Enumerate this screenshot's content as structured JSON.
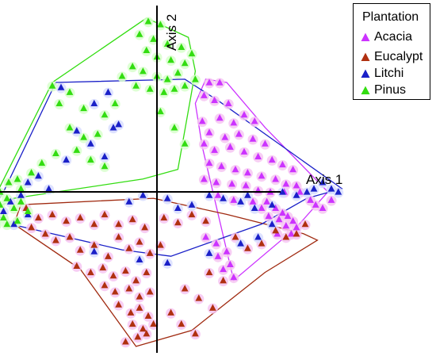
{
  "chart_data": {
    "type": "scatter",
    "title": "",
    "xlabel": "Axis 1",
    "ylabel": "Axis 2",
    "xlim": [
      -1.0,
      1.2
    ],
    "ylim": [
      -1.0,
      1.12
    ],
    "grid": false,
    "axes_through_origin": true,
    "marker": "triangle",
    "legend": {
      "title": "Plantation",
      "placement": "top-right"
    },
    "series": [
      {
        "name": "Acacia",
        "color": "#cc33ff",
        "halo": "#f6c6f2",
        "points": [
          [
            0.3,
            0.68
          ],
          [
            0.36,
            0.68
          ],
          [
            0.27,
            0.6
          ],
          [
            0.33,
            0.57
          ],
          [
            0.41,
            0.55
          ],
          [
            0.5,
            0.48
          ],
          [
            0.56,
            0.44
          ],
          [
            0.26,
            0.44
          ],
          [
            0.36,
            0.46
          ],
          [
            0.44,
            0.43
          ],
          [
            0.3,
            0.37
          ],
          [
            0.39,
            0.34
          ],
          [
            0.47,
            0.36
          ],
          [
            0.55,
            0.33
          ],
          [
            0.62,
            0.3
          ],
          [
            0.27,
            0.3
          ],
          [
            0.33,
            0.26
          ],
          [
            0.42,
            0.28
          ],
          [
            0.5,
            0.25
          ],
          [
            0.58,
            0.22
          ],
          [
            0.66,
            0.2
          ],
          [
            0.72,
            0.17
          ],
          [
            0.78,
            0.14
          ],
          [
            0.3,
            0.18
          ],
          [
            0.37,
            0.16
          ],
          [
            0.45,
            0.14
          ],
          [
            0.52,
            0.12
          ],
          [
            0.6,
            0.1
          ],
          [
            0.68,
            0.08
          ],
          [
            0.74,
            0.05
          ],
          [
            0.8,
            0.04
          ],
          [
            0.27,
            0.08
          ],
          [
            0.34,
            0.06
          ],
          [
            0.43,
            0.05
          ],
          [
            0.51,
            0.04
          ],
          [
            0.58,
            0.01
          ],
          [
            0.65,
            0.0
          ],
          [
            0.73,
            0.0
          ],
          [
            0.82,
            0.0
          ],
          [
            0.35,
            -0.02
          ],
          [
            0.44,
            -0.05
          ],
          [
            0.55,
            -0.06
          ],
          [
            0.63,
            -0.06
          ],
          [
            0.68,
            -0.1
          ],
          [
            0.72,
            -0.13
          ],
          [
            0.75,
            -0.15
          ],
          [
            0.78,
            -0.18
          ],
          [
            0.6,
            -0.1
          ],
          [
            0.64,
            -0.15
          ],
          [
            0.7,
            -0.17
          ],
          [
            0.74,
            -0.21
          ],
          [
            0.77,
            -0.26
          ],
          [
            0.8,
            -0.22
          ],
          [
            0.69,
            -0.26
          ],
          [
            0.28,
            -0.28
          ],
          [
            0.34,
            -0.32
          ],
          [
            0.4,
            -0.37
          ],
          [
            0.35,
            -0.4
          ],
          [
            0.42,
            -0.45
          ],
          [
            0.38,
            -0.48
          ],
          [
            0.44,
            -0.53
          ],
          [
            0.88,
            -0.05
          ],
          [
            0.91,
            -0.08
          ],
          [
            0.95,
            -0.1
          ],
          [
            1.0,
            -0.05
          ]
        ]
      },
      {
        "name": "Eucalypt",
        "color": "#b03010",
        "halo": "#f6c6f2",
        "points": [
          [
            -0.75,
            -0.1
          ],
          [
            -0.68,
            -0.16
          ],
          [
            -0.6,
            -0.14
          ],
          [
            -0.52,
            -0.18
          ],
          [
            -0.44,
            -0.16
          ],
          [
            -0.36,
            -0.2
          ],
          [
            -0.3,
            -0.14
          ],
          [
            -0.22,
            -0.2
          ],
          [
            -0.14,
            -0.17
          ],
          [
            -0.07,
            -0.22
          ],
          [
            0.04,
            -0.16
          ],
          [
            0.12,
            -0.19
          ],
          [
            0.2,
            -0.14
          ],
          [
            0.28,
            -0.18
          ],
          [
            -0.72,
            -0.22
          ],
          [
            -0.64,
            -0.26
          ],
          [
            -0.58,
            -0.3
          ],
          [
            -0.5,
            -0.28
          ],
          [
            -0.44,
            -0.36
          ],
          [
            -0.36,
            -0.33
          ],
          [
            -0.28,
            -0.4
          ],
          [
            -0.22,
            -0.28
          ],
          [
            -0.16,
            -0.35
          ],
          [
            -0.1,
            -0.31
          ],
          [
            -0.04,
            -0.38
          ],
          [
            0.02,
            -0.33
          ],
          [
            -0.46,
            -0.46
          ],
          [
            -0.38,
            -0.5
          ],
          [
            -0.31,
            -0.47
          ],
          [
            -0.25,
            -0.52
          ],
          [
            -0.18,
            -0.49
          ],
          [
            -0.12,
            -0.55
          ],
          [
            -0.06,
            -0.5
          ],
          [
            -0.3,
            -0.58
          ],
          [
            -0.24,
            -0.62
          ],
          [
            -0.16,
            -0.6
          ],
          [
            -0.1,
            -0.65
          ],
          [
            -0.04,
            -0.62
          ],
          [
            -0.22,
            -0.7
          ],
          [
            -0.15,
            -0.75
          ],
          [
            -0.1,
            -0.72
          ],
          [
            -0.05,
            -0.77
          ],
          [
            -0.14,
            -0.82
          ],
          [
            -0.08,
            -0.85
          ],
          [
            -0.02,
            -0.82
          ],
          [
            -0.11,
            -0.9
          ],
          [
            -0.06,
            -0.88
          ],
          [
            -0.18,
            -0.93
          ],
          [
            0.08,
            -0.75
          ],
          [
            0.14,
            -0.82
          ],
          [
            0.22,
            -0.88
          ],
          [
            0.16,
            -0.6
          ],
          [
            0.24,
            -0.66
          ],
          [
            0.32,
            -0.72
          ],
          [
            0.3,
            -0.5
          ],
          [
            0.38,
            -0.55
          ],
          [
            0.45,
            -0.28
          ],
          [
            0.52,
            -0.35
          ],
          [
            0.6,
            -0.32
          ],
          [
            0.68,
            -0.24
          ],
          [
            0.74,
            -0.28
          ],
          [
            0.8,
            -0.26
          ],
          [
            0.85,
            -0.2
          ]
        ]
      },
      {
        "name": "Litchi",
        "color": "#1a20c8",
        "halo": "#d8ddff",
        "points": [
          [
            -0.55,
            0.65
          ],
          [
            -0.36,
            0.55
          ],
          [
            -0.28,
            0.62
          ],
          [
            -0.22,
            0.42
          ],
          [
            -0.46,
            0.38
          ],
          [
            -0.38,
            0.3
          ],
          [
            -0.3,
            0.22
          ],
          [
            -0.25,
            0.4
          ],
          [
            -0.52,
            0.2
          ],
          [
            -0.68,
            0.1
          ],
          [
            -0.74,
            0.06
          ],
          [
            -0.62,
            0.02
          ],
          [
            -0.78,
            -0.02
          ],
          [
            -0.84,
            -0.06
          ],
          [
            -0.88,
            -0.12
          ],
          [
            -0.92,
            -0.18
          ],
          [
            -0.82,
            -0.2
          ],
          [
            -0.74,
            -0.14
          ],
          [
            -0.16,
            -0.06
          ],
          [
            -0.08,
            -0.02
          ],
          [
            0.06,
            -0.04
          ],
          [
            0.12,
            -0.1
          ],
          [
            0.2,
            -0.08
          ],
          [
            0.3,
            -0.02
          ],
          [
            0.38,
            -0.04
          ],
          [
            0.48,
            -0.06
          ],
          [
            0.52,
            -0.02
          ],
          [
            0.56,
            -0.1
          ],
          [
            0.66,
            -0.08
          ],
          [
            0.72,
            0.0
          ],
          [
            0.8,
            -0.02
          ],
          [
            0.86,
            0.0
          ],
          [
            0.9,
            0.02
          ],
          [
            0.95,
            0.06
          ],
          [
            1.0,
            0.02
          ],
          [
            1.04,
            0.0
          ],
          [
            -0.1,
            -0.42
          ],
          [
            0.06,
            -0.44
          ],
          [
            0.3,
            -0.38
          ],
          [
            0.48,
            -0.32
          ],
          [
            0.58,
            -0.28
          ],
          [
            0.66,
            -0.2
          ],
          [
            -0.36,
            -0.37
          ]
        ]
      },
      {
        "name": "Pinus",
        "color": "#33dd11",
        "halo": "#d8ffcc",
        "points": [
          [
            -0.05,
            1.06
          ],
          [
            0.02,
            1.04
          ],
          [
            -0.1,
            0.98
          ],
          [
            -0.02,
            0.95
          ],
          [
            0.06,
            0.92
          ],
          [
            0.14,
            0.9
          ],
          [
            0.2,
            0.86
          ],
          [
            -0.06,
            0.88
          ],
          [
            0.0,
            0.84
          ],
          [
            0.08,
            0.82
          ],
          [
            0.16,
            0.8
          ],
          [
            -0.14,
            0.78
          ],
          [
            -0.08,
            0.75
          ],
          [
            0.0,
            0.72
          ],
          [
            0.06,
            0.7
          ],
          [
            0.12,
            0.74
          ],
          [
            -0.2,
            0.72
          ],
          [
            -0.12,
            0.66
          ],
          [
            -0.04,
            0.64
          ],
          [
            0.04,
            0.62
          ],
          [
            0.1,
            0.64
          ],
          [
            0.16,
            0.66
          ],
          [
            0.22,
            0.7
          ],
          [
            -0.6,
            0.66
          ],
          [
            -0.5,
            0.62
          ],
          [
            -0.56,
            0.55
          ],
          [
            -0.42,
            0.52
          ],
          [
            -0.3,
            0.48
          ],
          [
            -0.24,
            0.55
          ],
          [
            -0.5,
            0.4
          ],
          [
            -0.42,
            0.34
          ],
          [
            -0.34,
            0.36
          ],
          [
            -0.46,
            0.26
          ],
          [
            -0.38,
            0.2
          ],
          [
            -0.3,
            0.16
          ],
          [
            -0.58,
            0.24
          ],
          [
            -0.66,
            0.18
          ],
          [
            -0.72,
            0.12
          ],
          [
            -0.8,
            0.08
          ],
          [
            -0.85,
            0.06
          ],
          [
            -0.78,
            0.02
          ],
          [
            -0.9,
            0.0
          ],
          [
            -0.86,
            -0.04
          ],
          [
            -0.9,
            -0.08
          ],
          [
            -0.94,
            -0.12
          ],
          [
            -0.88,
            -0.16
          ],
          [
            -0.82,
            -0.1
          ],
          [
            -0.78,
            -0.06
          ],
          [
            -0.74,
            -0.12
          ],
          [
            -0.92,
            -0.2
          ],
          [
            -0.86,
            -0.2
          ],
          [
            -0.8,
            -0.18
          ],
          [
            -0.96,
            -0.16
          ],
          [
            0.02,
            0.5
          ],
          [
            0.1,
            0.4
          ],
          [
            0.16,
            0.3
          ]
        ]
      }
    ],
    "hulls": [
      {
        "series": "Acacia",
        "color": "#cc33ff",
        "vertices": [
          [
            0.28,
            0.7
          ],
          [
            0.4,
            0.68
          ],
          [
            0.62,
            0.4
          ],
          [
            0.98,
            0.0
          ],
          [
            0.8,
            -0.22
          ],
          [
            0.44,
            -0.55
          ],
          [
            0.26,
            0.28
          ],
          [
            0.22,
            0.55
          ]
        ]
      },
      {
        "series": "Eucalypt",
        "color": "#a02a10",
        "vertices": [
          [
            -0.78,
            -0.08
          ],
          [
            -0.02,
            -0.04
          ],
          [
            0.4,
            -0.14
          ],
          [
            0.84,
            -0.26
          ],
          [
            0.92,
            -0.3
          ],
          [
            0.62,
            -0.5
          ],
          [
            0.2,
            -0.86
          ],
          [
            -0.12,
            -0.96
          ],
          [
            -0.44,
            -0.48
          ],
          [
            -0.82,
            -0.2
          ]
        ]
      },
      {
        "series": "Litchi",
        "color": "#1a20c8",
        "vertices": [
          [
            -0.58,
            0.68
          ],
          [
            0.16,
            0.7
          ],
          [
            0.36,
            0.56
          ],
          [
            1.06,
            0.02
          ],
          [
            0.86,
            -0.04
          ],
          [
            0.6,
            -0.2
          ],
          [
            0.08,
            -0.4
          ],
          [
            -0.2,
            -0.36
          ],
          [
            -0.84,
            -0.2
          ],
          [
            -0.95,
            -0.12
          ],
          [
            -0.88,
            0.0
          ]
        ]
      },
      {
        "series": "Pinus",
        "color": "#33dd11",
        "vertices": [
          [
            -0.06,
            1.08
          ],
          [
            0.18,
            0.96
          ],
          [
            0.22,
            0.75
          ],
          [
            0.12,
            0.14
          ],
          [
            -0.08,
            0.08
          ],
          [
            -0.82,
            -0.04
          ],
          [
            -0.98,
            -0.14
          ],
          [
            -0.6,
            0.68
          ]
        ]
      }
    ]
  }
}
